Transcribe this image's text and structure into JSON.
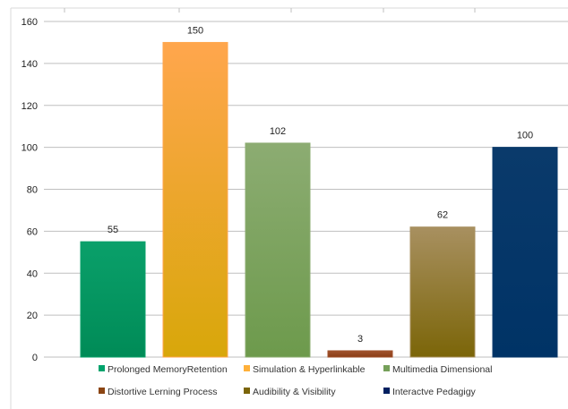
{
  "chart_data": {
    "type": "bar",
    "categories": [
      "Prolonged MemoryRetention",
      "Simulation & Hyperlinkable",
      "Multimedia Dimensional",
      "Distortive Lerning Process",
      "Audibility & Visibility",
      "Interactve Pedagigy"
    ],
    "values": [
      55,
      150,
      102,
      3,
      62,
      100
    ],
    "data_labels": [
      "55",
      "150",
      "102",
      "3",
      "62",
      "100"
    ],
    "ylim": [
      0,
      160
    ],
    "yticks": [
      0,
      20,
      40,
      60,
      80,
      100,
      120,
      140,
      160
    ],
    "grid": true,
    "legend_position": "bottom",
    "title": "",
    "xlabel": "",
    "ylabel": ""
  },
  "colors": {
    "bars": [
      {
        "top": "#0aa06a",
        "bottom": "#008b57"
      },
      {
        "top": "#ffa64d",
        "bottom": "#d8a70a"
      },
      {
        "top": "#8cac72",
        "bottom": "#6d9a4c"
      },
      {
        "top": "#a0522d",
        "bottom": "#8b3e16"
      },
      {
        "top": "#a89060",
        "bottom": "#7b6508"
      },
      {
        "top": "#0a3a6b",
        "bottom": "#003366"
      }
    ],
    "legend": [
      "#00a36c",
      "#ffb03a",
      "#76a05a",
      "#8b4513",
      "#7b6508",
      "#002060"
    ],
    "grid": "#bfbfbf"
  }
}
